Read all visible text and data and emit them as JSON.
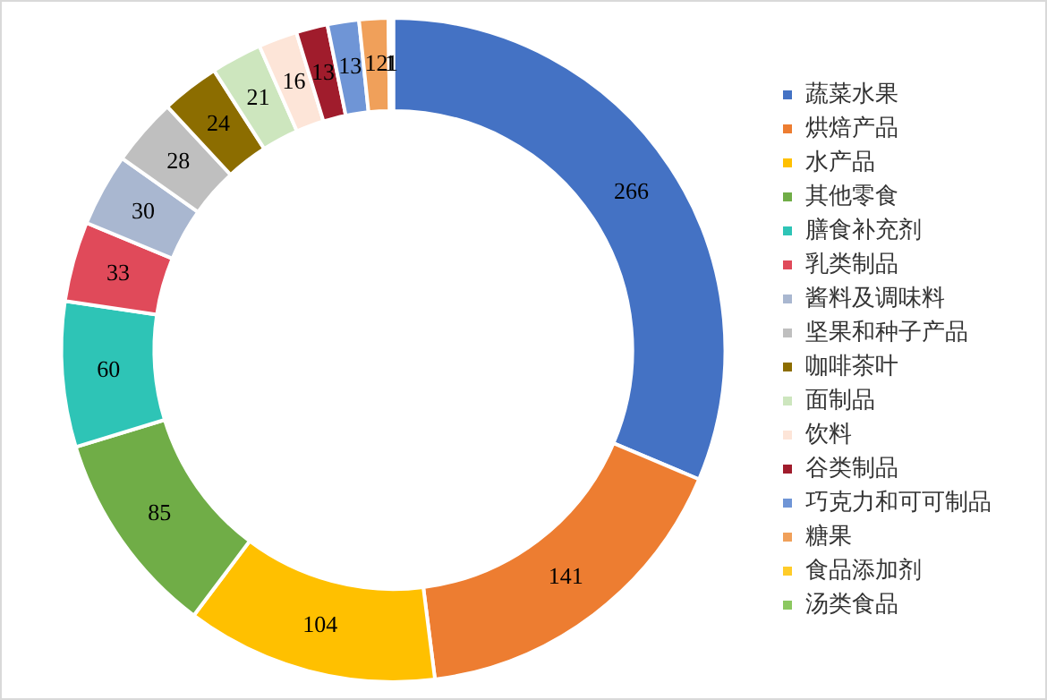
{
  "chart_data": {
    "type": "donut",
    "categories": [
      "蔬菜水果",
      "烘焙产品",
      "水产品",
      "其他零食",
      "膳食补充剂",
      "乳类制品",
      "酱料及调味料",
      "坚果和种子产品",
      "咖啡茶叶",
      "面制品",
      "饮料",
      "谷类制品",
      "巧克力和可可制品",
      "糖果",
      "食品添加剂",
      "汤类食品"
    ],
    "values": [
      266,
      141,
      104,
      85,
      60,
      33,
      30,
      28,
      24,
      21,
      16,
      13,
      13,
      12,
      1,
      1
    ],
    "colors": [
      "#4472c4",
      "#ed7d31",
      "#ffc000",
      "#70ad47",
      "#2ec4b6",
      "#e04a5a",
      "#a9b7d0",
      "#bfbfbf",
      "#8c6d00",
      "#cde6be",
      "#fde5d8",
      "#a01c2c",
      "#6f95d6",
      "#f0a05a",
      "#ffcc29",
      "#8cc860"
    ],
    "data_labels": true,
    "legend": "right"
  }
}
